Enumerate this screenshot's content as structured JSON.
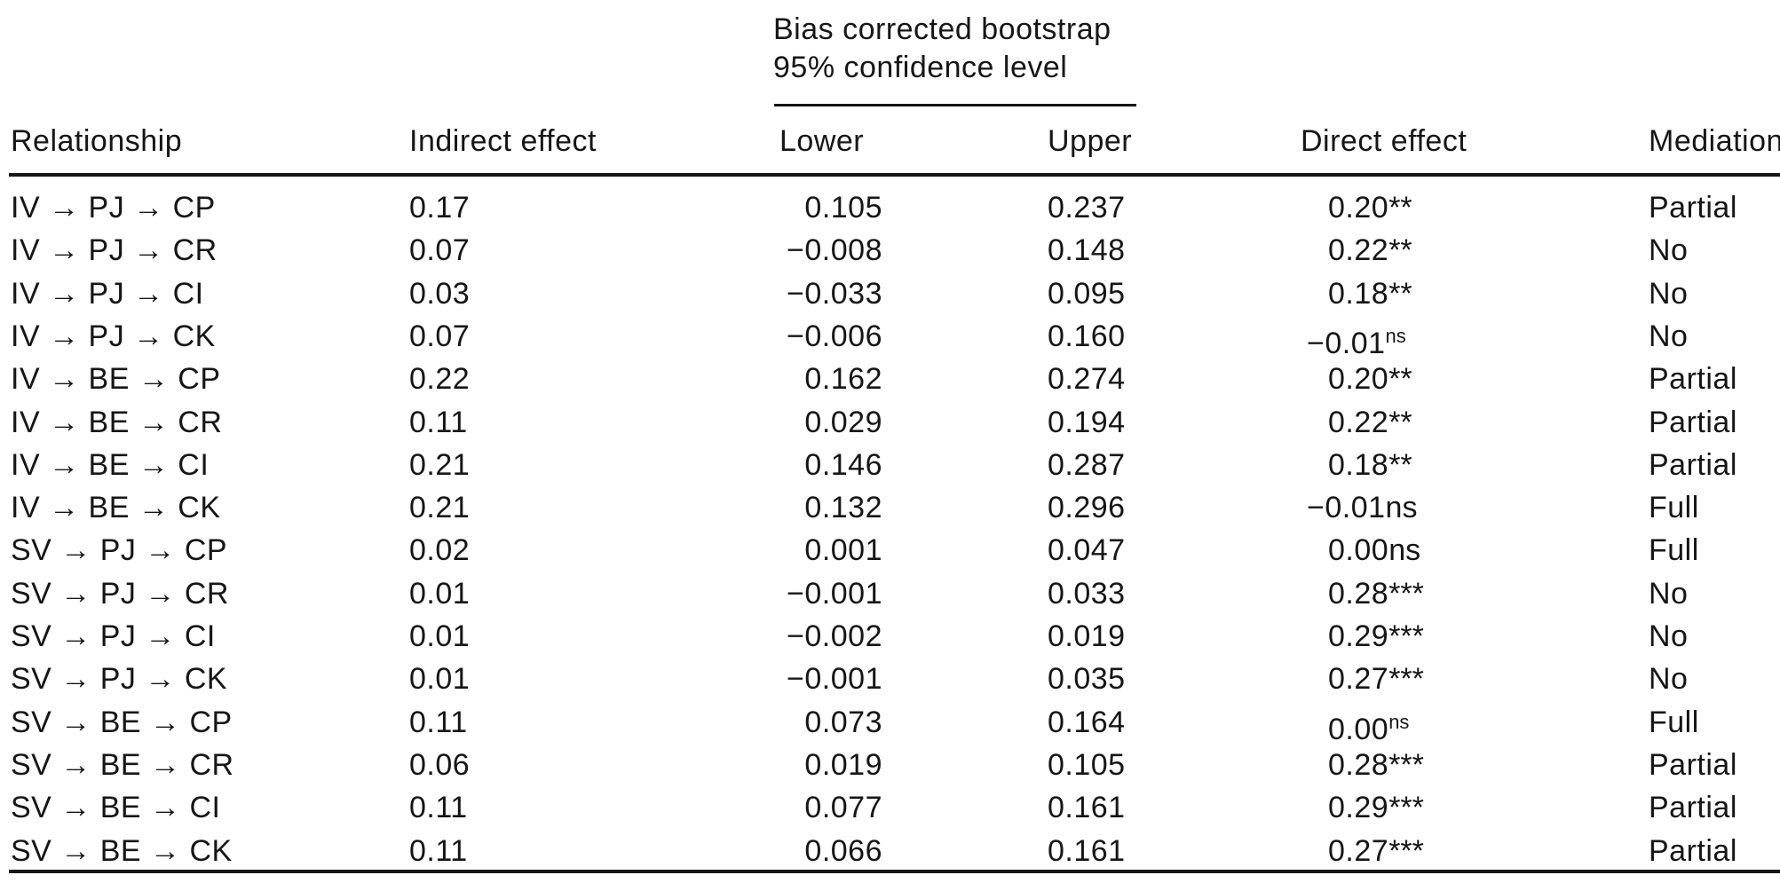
{
  "colors": {
    "background": "#ffffff",
    "text": "#161616",
    "rule": "#161616"
  },
  "table": {
    "spanner": {
      "line1": "Bias corrected bootstrap",
      "line2": "95% confidence level"
    },
    "headers": {
      "relationship": "Relationship",
      "indirect": "Indirect effect",
      "lower": "Lower",
      "upper": "Upper",
      "direct": "Direct effect",
      "mediation": "Mediation"
    },
    "rows": [
      {
        "relationship": "IV → PJ → CP",
        "indirect": "0.17",
        "lower": "0.105",
        "upper": "0.237",
        "direct": {
          "value": "0.20",
          "mark": "**",
          "sup": false
        },
        "mediation": "Partial"
      },
      {
        "relationship": "IV → PJ → CR",
        "indirect": "0.07",
        "lower": "−0.008",
        "upper": "0.148",
        "direct": {
          "value": "0.22",
          "mark": "**",
          "sup": false
        },
        "mediation": "No"
      },
      {
        "relationship": "IV → PJ → CI",
        "indirect": "0.03",
        "lower": "−0.033",
        "upper": "0.095",
        "direct": {
          "value": "0.18",
          "mark": "**",
          "sup": false
        },
        "mediation": "No"
      },
      {
        "relationship": "IV → PJ → CK",
        "indirect": "0.07",
        "lower": "−0.006",
        "upper": "0.160",
        "direct": {
          "value": "−0.01",
          "mark": "ns",
          "sup": true
        },
        "mediation": "No"
      },
      {
        "relationship": "IV → BE → CP",
        "indirect": "0.22",
        "lower": "0.162",
        "upper": "0.274",
        "direct": {
          "value": "0.20",
          "mark": "**",
          "sup": false
        },
        "mediation": "Partial"
      },
      {
        "relationship": "IV → BE → CR",
        "indirect": "0.11",
        "lower": "0.029",
        "upper": "0.194",
        "direct": {
          "value": "0.22",
          "mark": "**",
          "sup": false
        },
        "mediation": "Partial"
      },
      {
        "relationship": "IV → BE → CI",
        "indirect": "0.21",
        "lower": "0.146",
        "upper": "0.287",
        "direct": {
          "value": "0.18",
          "mark": "**",
          "sup": false
        },
        "mediation": "Partial"
      },
      {
        "relationship": "IV → BE → CK",
        "indirect": "0.21",
        "lower": "0.132",
        "upper": "0.296",
        "direct": {
          "value": "−0.01",
          "mark": "ns",
          "sup": false
        },
        "mediation": "Full"
      },
      {
        "relationship": "SV → PJ → CP",
        "indirect": "0.02",
        "lower": "0.001",
        "upper": "0.047",
        "direct": {
          "value": "0.00",
          "mark": "ns",
          "sup": false
        },
        "mediation": "Full"
      },
      {
        "relationship": "SV → PJ → CR",
        "indirect": "0.01",
        "lower": "−0.001",
        "upper": "0.033",
        "direct": {
          "value": "0.28",
          "mark": "***",
          "sup": false
        },
        "mediation": "No"
      },
      {
        "relationship": "SV → PJ → CI",
        "indirect": "0.01",
        "lower": "−0.002",
        "upper": "0.019",
        "direct": {
          "value": "0.29",
          "mark": "***",
          "sup": false
        },
        "mediation": "No"
      },
      {
        "relationship": "SV → PJ → CK",
        "indirect": "0.01",
        "lower": "−0.001",
        "upper": "0.035",
        "direct": {
          "value": "0.27",
          "mark": "***",
          "sup": false
        },
        "mediation": "No"
      },
      {
        "relationship": "SV → BE → CP",
        "indirect": "0.11",
        "lower": "0.073",
        "upper": "0.164",
        "direct": {
          "value": "0.00",
          "mark": "ns",
          "sup": true
        },
        "mediation": "Full"
      },
      {
        "relationship": "SV → BE → CR",
        "indirect": "0.06",
        "lower": "0.019",
        "upper": "0.105",
        "direct": {
          "value": "0.28",
          "mark": "***",
          "sup": false
        },
        "mediation": "Partial"
      },
      {
        "relationship": "SV → BE → CI",
        "indirect": "0.11",
        "lower": "0.077",
        "upper": "0.161",
        "direct": {
          "value": "0.29",
          "mark": "***",
          "sup": false
        },
        "mediation": "Partial"
      },
      {
        "relationship": "SV → BE → CK",
        "indirect": "0.11",
        "lower": "0.066",
        "upper": "0.161",
        "direct": {
          "value": "0.27",
          "mark": "***",
          "sup": false
        },
        "mediation": "Partial"
      }
    ]
  }
}
